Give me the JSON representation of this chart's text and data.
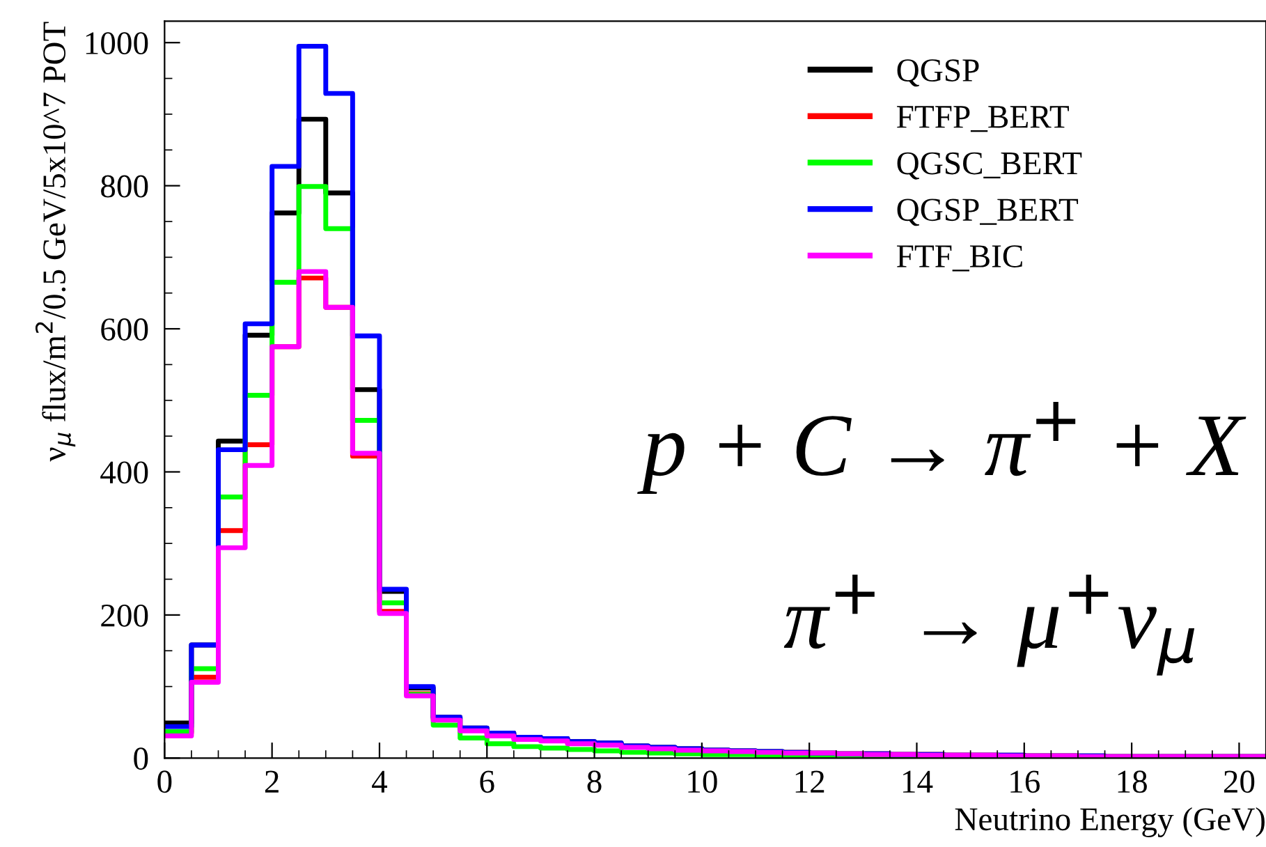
{
  "chart_data": {
    "type": "histogram",
    "xlabel": "Neutrino Energy (GeV)",
    "ylabel": "ν$_{μ}$ flux/m$^{2}$/0.5 GeV/5x10^7 POT",
    "bins": [
      0,
      0.5,
      1,
      1.5,
      2,
      2.5,
      3,
      3.5,
      4,
      4.5,
      5,
      5.5,
      6,
      6.5,
      7,
      7.5,
      8,
      8.5,
      9,
      9.5,
      10,
      10.5,
      11,
      11.5,
      12,
      12.5,
      13,
      13.5,
      14,
      14.5,
      15,
      15.5,
      16,
      16.5,
      17,
      17.5,
      18,
      18.5,
      19,
      19.5,
      20,
      20.5
    ],
    "series": [
      {
        "name": "QGSP",
        "color": "#000000",
        "values": [
          49,
          158,
          443,
          591,
          762,
          893,
          790,
          515,
          233,
          98,
          57,
          42,
          35,
          29,
          27,
          23,
          21,
          17,
          15,
          13,
          11,
          10,
          9,
          8,
          7,
          6,
          6,
          5,
          5,
          4,
          4,
          4,
          3,
          3,
          3,
          2,
          2,
          2,
          2,
          2,
          2
        ]
      },
      {
        "name": "FTFP_BERT",
        "color": "#ff0000",
        "values": [
          35,
          113,
          318,
          438,
          575,
          671,
          630,
          422,
          205,
          90,
          55,
          40,
          33,
          28,
          25,
          21,
          19,
          16,
          14,
          12,
          10,
          9,
          8,
          8,
          7,
          6,
          6,
          5,
          5,
          4,
          4,
          3,
          3,
          3,
          2,
          2,
          2,
          2,
          2,
          2,
          2
        ]
      },
      {
        "name": "QGSC_BERT",
        "color": "#00ff00",
        "values": [
          37,
          125,
          365,
          507,
          665,
          799,
          740,
          472,
          217,
          89,
          46,
          28,
          20,
          16,
          14,
          12,
          10,
          8,
          7,
          6,
          5,
          5,
          4,
          4,
          3,
          3,
          3,
          2,
          2,
          2,
          2,
          2,
          2,
          1,
          1,
          1,
          1,
          1,
          1,
          1,
          1
        ]
      },
      {
        "name": "QGSP_BERT",
        "color": "#0000ff",
        "values": [
          44,
          158,
          431,
          607,
          827,
          995,
          929,
          590,
          236,
          100,
          57,
          42,
          35,
          29,
          27,
          23,
          21,
          17,
          15,
          13,
          11,
          10,
          9,
          8,
          7,
          6,
          6,
          5,
          5,
          4,
          4,
          4,
          3,
          3,
          3,
          2,
          2,
          2,
          2,
          2,
          2
        ]
      },
      {
        "name": "FTF_BIC",
        "color": "#ff00ff",
        "values": [
          31,
          106,
          294,
          409,
          575,
          680,
          630,
          426,
          202,
          87,
          53,
          38,
          31,
          26,
          24,
          20,
          18,
          15,
          13,
          11,
          10,
          9,
          8,
          7,
          7,
          6,
          5,
          5,
          4,
          4,
          4,
          3,
          3,
          3,
          2,
          2,
          2,
          2,
          2,
          2,
          2
        ]
      }
    ],
    "annotations": [
      "p + C → π$^{+}$ + X",
      "π$^{+}$ → μ$^{+}$ν$_{μ}$"
    ],
    "xlim": [
      0,
      20.5
    ],
    "ylim": [
      0,
      1030
    ],
    "xticks": [
      0,
      2,
      4,
      6,
      8,
      10,
      12,
      14,
      16,
      18,
      20
    ],
    "yticks": [
      0,
      200,
      400,
      600,
      800,
      1000
    ],
    "legend": "top right",
    "grid": false
  }
}
